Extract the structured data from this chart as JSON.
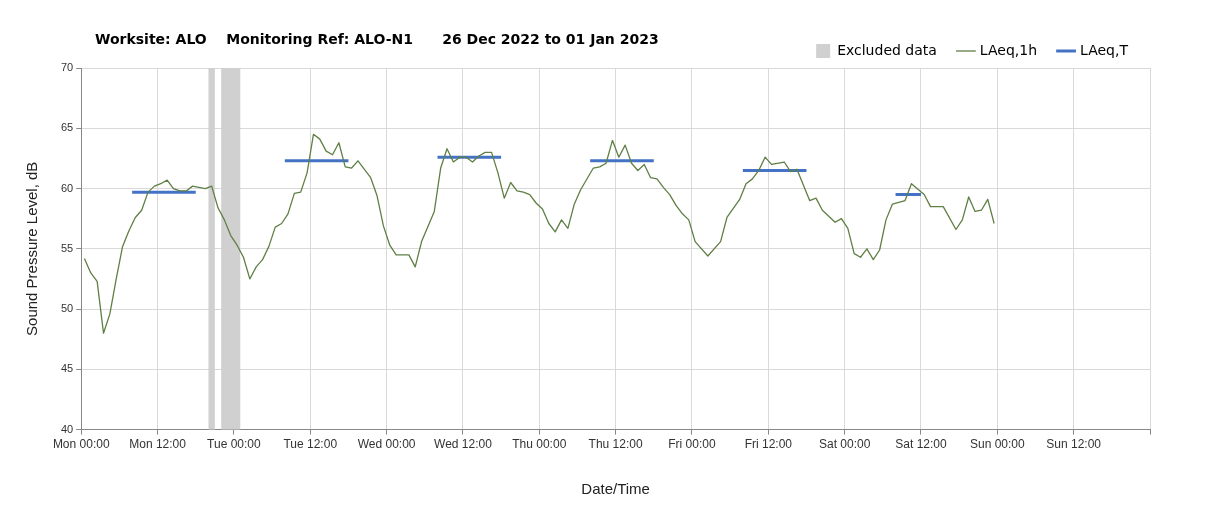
{
  "chart_data": {
    "type": "line",
    "title": "Worksite: ALO    Monitoring Ref: ALO-N1      26 Dec 2022 to 01 Jan 2023",
    "xlabel": "Date/Time",
    "ylabel": "Sound Pressure Level, dB",
    "xlim": [
      "2022-12-26T00:00",
      "2023-01-02T00:00"
    ],
    "xticks": [
      {
        "value": "2022-12-26T00:00",
        "label": "Mon 00:00"
      },
      {
        "value": "2022-12-26T12:00",
        "label": "Mon 12:00"
      },
      {
        "value": "2022-12-27T00:00",
        "label": "Tue 00:00"
      },
      {
        "value": "2022-12-27T12:00",
        "label": "Tue 12:00"
      },
      {
        "value": "2022-12-28T00:00",
        "label": "Wed 00:00"
      },
      {
        "value": "2022-12-28T12:00",
        "label": "Wed 12:00"
      },
      {
        "value": "2022-12-29T00:00",
        "label": "Thu 00:00"
      },
      {
        "value": "2022-12-29T12:00",
        "label": "Thu 12:00"
      },
      {
        "value": "2022-12-30T00:00",
        "label": "Fri 00:00"
      },
      {
        "value": "2022-12-30T12:00",
        "label": "Fri 12:00"
      },
      {
        "value": "2022-12-31T00:00",
        "label": "Sat 00:00"
      },
      {
        "value": "2022-12-31T12:00",
        "label": "Sat 12:00"
      },
      {
        "value": "2023-01-01T00:00",
        "label": "Sun 00:00"
      },
      {
        "value": "2023-01-01T12:00",
        "label": "Sun 12:00"
      },
      {
        "value": "2023-01-02T00:00",
        "label": null
      }
    ],
    "ylim": [
      40,
      70
    ],
    "yticks": [
      40,
      45,
      50,
      55,
      60,
      65,
      70
    ],
    "grid": true,
    "legend": "top right",
    "bands": [
      {
        "axis": "x",
        "from": "2022-12-26T20:00",
        "to": "2022-12-26T21:00",
        "label": "Excluded data",
        "color": "#d0d0d0"
      },
      {
        "axis": "x",
        "from": "2022-12-26T22:00",
        "to": "2022-12-27T01:00",
        "color": "#d0d0d0"
      }
    ],
    "series": [
      {
        "name": "LAeq,1h",
        "color": "#5f7f45",
        "x": [
          "2022-12-26T00:30",
          "2022-12-26T01:30",
          "2022-12-26T02:30",
          "2022-12-26T03:30",
          "2022-12-26T04:30",
          "2022-12-26T05:30",
          "2022-12-26T06:30",
          "2022-12-26T07:30",
          "2022-12-26T08:30",
          "2022-12-26T09:30",
          "2022-12-26T10:30",
          "2022-12-26T11:30",
          "2022-12-26T12:30",
          "2022-12-26T13:30",
          "2022-12-26T14:30",
          "2022-12-26T15:30",
          "2022-12-26T16:30",
          "2022-12-26T17:30",
          "2022-12-26T18:30",
          "2022-12-26T19:30",
          "2022-12-26T20:30",
          "2022-12-26T21:30",
          "2022-12-26T22:30",
          "2022-12-26T23:30",
          "2022-12-27T00:30",
          "2022-12-27T01:30",
          "2022-12-27T02:30",
          "2022-12-27T03:30",
          "2022-12-27T04:30",
          "2022-12-27T05:30",
          "2022-12-27T06:30",
          "2022-12-27T07:30",
          "2022-12-27T08:30",
          "2022-12-27T09:30",
          "2022-12-27T10:30",
          "2022-12-27T11:30",
          "2022-12-27T12:30",
          "2022-12-27T13:30",
          "2022-12-27T14:30",
          "2022-12-27T15:30",
          "2022-12-27T16:30",
          "2022-12-27T17:30",
          "2022-12-27T18:30",
          "2022-12-27T19:30",
          "2022-12-27T21:30",
          "2022-12-27T22:30",
          "2022-12-27T23:30",
          "2022-12-28T00:30",
          "2022-12-28T01:30",
          "2022-12-28T03:30",
          "2022-12-28T04:30",
          "2022-12-28T05:30",
          "2022-12-28T07:30",
          "2022-12-28T08:30",
          "2022-12-28T09:30",
          "2022-12-28T10:30",
          "2022-12-28T11:30",
          "2022-12-28T12:30",
          "2022-12-28T13:30",
          "2022-12-28T14:30",
          "2022-12-28T15:30",
          "2022-12-28T16:30",
          "2022-12-28T17:30",
          "2022-12-28T18:30",
          "2022-12-28T19:30",
          "2022-12-28T20:30",
          "2022-12-28T21:30",
          "2022-12-28T22:30",
          "2022-12-28T23:30",
          "2022-12-29T00:30",
          "2022-12-29T01:30",
          "2022-12-29T02:30",
          "2022-12-29T03:30",
          "2022-12-29T04:30",
          "2022-12-29T05:30",
          "2022-12-29T06:30",
          "2022-12-29T08:30",
          "2022-12-29T09:30",
          "2022-12-29T10:30",
          "2022-12-29T11:30",
          "2022-12-29T12:30",
          "2022-12-29T13:30",
          "2022-12-29T14:30",
          "2022-12-29T15:30",
          "2022-12-29T16:30",
          "2022-12-29T17:30",
          "2022-12-29T18:30",
          "2022-12-29T19:30",
          "2022-12-29T20:30",
          "2022-12-29T21:30",
          "2022-12-29T22:30",
          "2022-12-29T23:30",
          "2022-12-30T00:30",
          "2022-12-30T02:30",
          "2022-12-30T04:30",
          "2022-12-30T05:30",
          "2022-12-30T07:30",
          "2022-12-30T08:30",
          "2022-12-30T09:30",
          "2022-12-30T10:30",
          "2022-12-30T11:30",
          "2022-12-30T12:30",
          "2022-12-30T14:30",
          "2022-12-30T15:30",
          "2022-12-30T16:30",
          "2022-12-30T18:30",
          "2022-12-30T19:30",
          "2022-12-30T20:30",
          "2022-12-30T21:30",
          "2022-12-30T22:30",
          "2022-12-30T23:30",
          "2022-12-31T00:30",
          "2022-12-31T01:30",
          "2022-12-31T02:30",
          "2022-12-31T03:30",
          "2022-12-31T04:30",
          "2022-12-31T05:30",
          "2022-12-31T06:30",
          "2022-12-31T07:30",
          "2022-12-31T09:30",
          "2022-12-31T10:30",
          "2022-12-31T12:30",
          "2022-12-31T13:30",
          "2022-12-31T15:30",
          "2022-12-31T17:30",
          "2022-12-31T18:30",
          "2022-12-31T19:30",
          "2022-12-31T20:30",
          "2022-12-31T21:30",
          "2022-12-31T22:30",
          "2022-12-31T23:30"
        ],
        "values": [
          54.2,
          53.0,
          52.3,
          48.0,
          49.6,
          52.5,
          55.2,
          56.5,
          57.6,
          58.2,
          59.7,
          60.2,
          60.4,
          60.7,
          60.0,
          59.8,
          59.8,
          60.2,
          60.1,
          60.0,
          60.2,
          58.4,
          57.4,
          56.1,
          55.3,
          54.3,
          52.5,
          53.5,
          54.1,
          55.2,
          56.8,
          57.1,
          57.9,
          59.6,
          59.7,
          61.3,
          64.5,
          64.1,
          63.1,
          62.8,
          63.8,
          61.8,
          61.7,
          62.3,
          60.9,
          59.4,
          56.9,
          55.3,
          54.5,
          54.5,
          53.5,
          55.6,
          58.1,
          61.7,
          63.3,
          62.2,
          62.6,
          62.6,
          62.2,
          62.7,
          63.0,
          63.0,
          61.3,
          59.2,
          60.5,
          59.8,
          59.7,
          59.5,
          58.8,
          58.3,
          57.1,
          56.4,
          57.4,
          56.7,
          58.7,
          59.9,
          61.7,
          61.8,
          62.1,
          64.0,
          62.6,
          63.6,
          62.1,
          61.5,
          62.0,
          60.9,
          60.8,
          60.1,
          59.5,
          58.6,
          57.9,
          57.4,
          55.6,
          54.4,
          55.6,
          57.6,
          59.1,
          60.4,
          60.8,
          61.5,
          62.6,
          62.0,
          62.2,
          61.4,
          61.6,
          59.0,
          59.2,
          58.2,
          57.7,
          57.2,
          57.5,
          56.7,
          54.6,
          54.3,
          55.0,
          54.1,
          54.9,
          57.4,
          58.7,
          59.0,
          60.4,
          59.5,
          58.5,
          58.5,
          56.6,
          57.4,
          59.3,
          58.1,
          58.2,
          59.1,
          57.1
        ]
      },
      {
        "name": "LAeq,T",
        "color": "#4472c4",
        "x": [
          "2022-12-26T08:00",
          "2022-12-26T18:00"
        ],
        "values": [
          59.7,
          59.7
        ]
      },
      {
        "color": "#4472c4",
        "x": [
          "2022-12-27T08:00",
          "2022-12-27T18:00"
        ],
        "values": [
          62.3,
          62.3
        ]
      },
      {
        "color": "#4472c4",
        "x": [
          "2022-12-28T08:00",
          "2022-12-28T18:00"
        ],
        "values": [
          62.6,
          62.6
        ]
      },
      {
        "color": "#4472c4",
        "x": [
          "2022-12-29T08:00",
          "2022-12-29T18:00"
        ],
        "values": [
          62.3,
          62.3
        ]
      },
      {
        "color": "#4472c4",
        "x": [
          "2022-12-30T08:00",
          "2022-12-30T18:00"
        ],
        "values": [
          61.5,
          61.5
        ]
      },
      {
        "color": "#4472c4",
        "x": [
          "2022-12-31T08:00",
          "2022-12-31T12:00"
        ],
        "values": [
          59.5,
          59.5
        ]
      }
    ]
  }
}
